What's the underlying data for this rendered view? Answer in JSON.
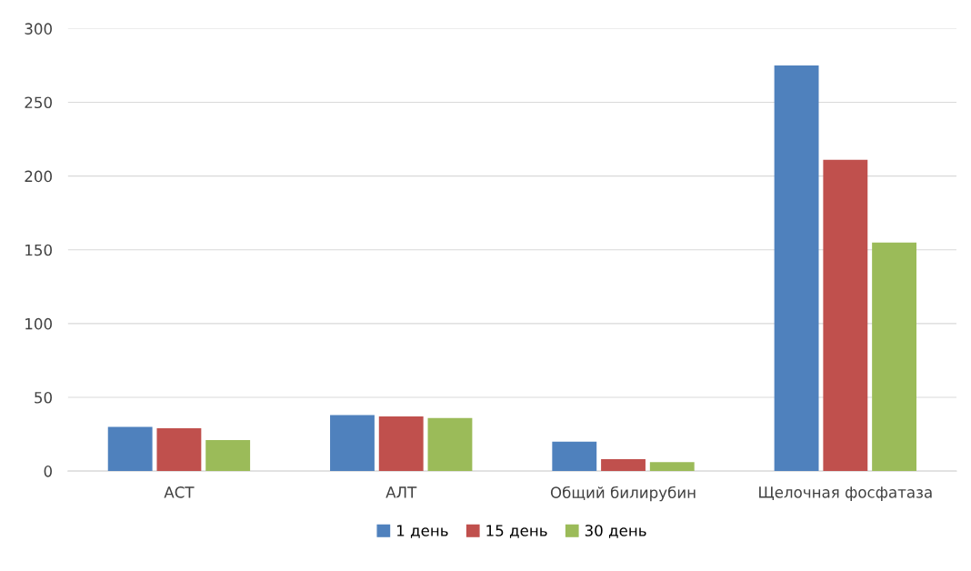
{
  "chart_data": {
    "type": "bar",
    "categories": [
      "АСТ",
      "АЛТ",
      "Общий билирубин",
      "Щелочная фосфатаза"
    ],
    "series": [
      {
        "name": "1 день",
        "color": "#4f81bd",
        "values": [
          30,
          38,
          20,
          275
        ]
      },
      {
        "name": "15 день",
        "color": "#c0504d",
        "values": [
          29,
          37,
          8,
          211
        ]
      },
      {
        "name": "30 день",
        "color": "#9bbb59",
        "values": [
          21,
          36,
          6,
          155
        ]
      }
    ],
    "ylim": [
      0,
      300
    ],
    "yticks": [
      0,
      50,
      100,
      150,
      200,
      250,
      300
    ],
    "grid": "y",
    "legend": "bottom"
  }
}
